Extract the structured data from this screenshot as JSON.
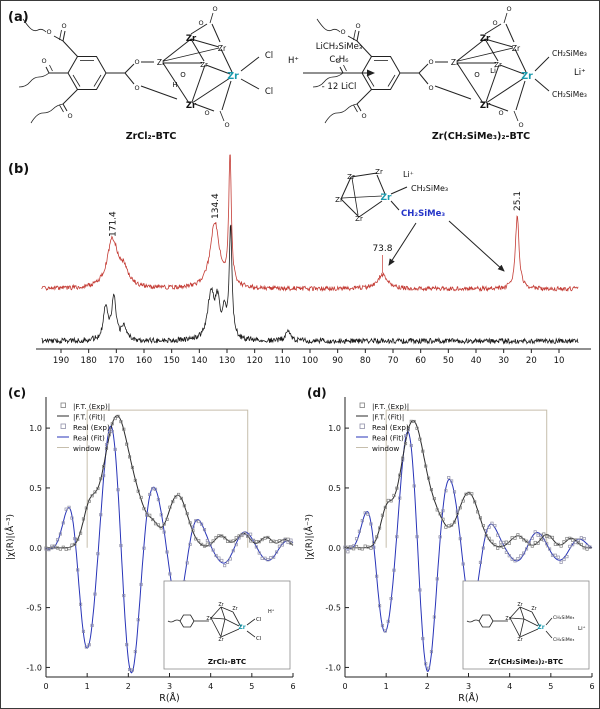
{
  "figure": {
    "panel_a": {
      "label": "(a)",
      "left_name": "ZrCl₂-BTC",
      "right_name": "Zr(CH₂SiMe₃)₂-BTC",
      "reagent": "LiCH₂SiMe₃",
      "solvent": "C₆H₆",
      "byproduct": "- 12 LiCl",
      "h_plus": "H⁺",
      "li_plus": "Li⁺",
      "zr": "Zr",
      "o": "O",
      "h": "H",
      "li": "Li",
      "cl": "Cl",
      "alkyl": "CH₂SiMe₃"
    },
    "panel_b": {
      "label": "(b)",
      "inset": {
        "zr": "Zr",
        "li_plus": "Li⁺",
        "alkyl_black": "CH₂SiMe₃",
        "alkyl_blue": "CH₂SiMe₃"
      }
    },
    "panel_c": {
      "label": "(c)",
      "inset_label": "ZrCl₂-BTC",
      "zr": "Zr",
      "cl": "Cl",
      "h_plus": "H⁺"
    },
    "panel_d": {
      "label": "(d)",
      "inset_label": "Zr(CH₂SiMe₃)₂-BTC",
      "zr": "Zr",
      "alkyl": "CH₂SiMe₃",
      "li_plus": "Li⁺"
    }
  },
  "chart_data": [
    {
      "id": "nmr",
      "type": "line",
      "title": "",
      "xlabel": "",
      "ylabel": "",
      "x_axis_reversed": true,
      "x_range": [
        197,
        3
      ],
      "x_ticks": [
        190,
        180,
        170,
        160,
        150,
        140,
        130,
        120,
        110,
        100,
        90,
        80,
        70,
        60,
        50,
        40,
        30,
        20,
        10
      ],
      "peak_labels": [
        {
          "text": "171.4",
          "ppm": 171.4
        },
        {
          "text": "134.4",
          "ppm": 134.4
        },
        {
          "text": "73.8",
          "ppm": 73.8
        },
        {
          "text": "25.1",
          "ppm": 25.1
        }
      ],
      "series": [
        {
          "name": "black-spectrum",
          "color": "#1c1c1c",
          "baseline": 192,
          "noise": 2.6,
          "seed": 7,
          "peaks": [
            [
              173.8,
              34,
              1.0
            ],
            [
              170.9,
              42,
              0.9
            ],
            [
              167.2,
              14,
              1.1
            ],
            [
              135.8,
              46,
              1.4
            ],
            [
              133.4,
              34,
              1.0
            ],
            [
              131.0,
              26,
              0.8
            ],
            [
              128.7,
              112,
              0.6
            ],
            [
              108,
              11,
              0.9
            ]
          ]
        },
        {
          "name": "red-spectrum",
          "color": "#c43c35",
          "baseline": 140,
          "noise": 2.2,
          "seed": 13,
          "peaks": [
            [
              171.4,
              48,
              2.3
            ],
            [
              167.3,
              16,
              2.0
            ],
            [
              134.4,
              66,
              2.0
            ],
            [
              128.9,
              132,
              0.55
            ],
            [
              73.8,
              14,
              2.3
            ],
            [
              25.1,
              72,
              0.8
            ]
          ]
        }
      ]
    },
    {
      "id": "exafs_c",
      "type": "line",
      "title": "",
      "xlabel": "R(Å)",
      "ylabel": "|χ(R)|(Å⁻³)",
      "xlim": [
        0,
        6
      ],
      "ylim": [
        -1.0,
        1.0
      ],
      "x_ticks": [
        0,
        1,
        2,
        3,
        4,
        5,
        6
      ],
      "y_ticks": [
        -1.0,
        -0.5,
        0.0,
        0.5,
        1.0
      ],
      "legend": [
        "|F.T. (Exp)|",
        "|F.T. (Fit)|",
        "Real (Exp)",
        "Real (Fit)",
        "window"
      ],
      "window": {
        "start": 1.0,
        "end": 4.9,
        "height": 1.15
      },
      "ft_gaussians": [
        [
          1.05,
          0.28,
          0.22
        ],
        [
          1.72,
          1.1,
          0.45
        ],
        [
          2.3,
          0.2,
          0.3
        ],
        [
          2.62,
          0.12,
          0.18
        ],
        [
          3.2,
          0.44,
          0.34
        ],
        [
          4.25,
          0.1,
          0.22
        ],
        [
          4.8,
          0.12,
          0.22
        ],
        [
          5.35,
          0.09,
          0.2
        ],
        [
          5.8,
          0.07,
          0.18
        ]
      ],
      "real_envelope": [
        [
          0.85,
          0.6,
          0.4
        ],
        [
          1.85,
          1.15,
          0.75
        ],
        [
          3.25,
          0.42,
          0.55
        ],
        [
          4.6,
          0.14,
          0.7
        ],
        [
          5.6,
          0.08,
          0.5
        ]
      ],
      "real_period": 1.1,
      "real_phase_max": 1.55,
      "seed": 21
    },
    {
      "id": "exafs_d",
      "type": "line",
      "title": "",
      "xlabel": "R(Å)",
      "ylabel": "|χ(R)|(Å⁻³)",
      "xlim": [
        0,
        6
      ],
      "ylim": [
        -1.0,
        1.0
      ],
      "x_ticks": [
        0,
        1,
        2,
        3,
        4,
        5,
        6
      ],
      "y_ticks": [
        -1.0,
        -0.5,
        0.0,
        0.5,
        1.0
      ],
      "legend": [
        "|F.T. (Exp)|",
        "|F.T. (Fit)|",
        "Real (Exp)",
        "Real (Fit)",
        "window"
      ],
      "window": {
        "start": 1.0,
        "end": 4.9,
        "height": 1.15
      },
      "ft_gaussians": [
        [
          1.0,
          0.26,
          0.2
        ],
        [
          1.65,
          1.06,
          0.42
        ],
        [
          2.25,
          0.18,
          0.3
        ],
        [
          3.0,
          0.46,
          0.36
        ],
        [
          4.2,
          0.1,
          0.25
        ],
        [
          4.9,
          0.11,
          0.22
        ],
        [
          5.5,
          0.08,
          0.2
        ]
      ],
      "real_envelope": [
        [
          0.8,
          0.5,
          0.38
        ],
        [
          1.8,
          1.12,
          0.72
        ],
        [
          3.05,
          0.44,
          0.55
        ],
        [
          4.5,
          0.13,
          0.7
        ],
        [
          5.5,
          0.08,
          0.5
        ]
      ],
      "real_period": 1.06,
      "real_phase_max": 1.5,
      "seed": 33
    }
  ]
}
